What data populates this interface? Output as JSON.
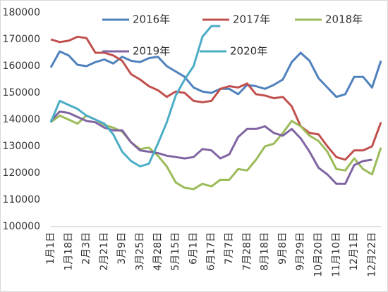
{
  "chart_data": {
    "type": "line",
    "categories": [
      "1月1日",
      null,
      "1月18日",
      null,
      "2月3日",
      null,
      "2月21日",
      null,
      "3月9日",
      null,
      "3月25日",
      null,
      "4月28日",
      null,
      "5月15日",
      null,
      "6月1日",
      null,
      "6月17日",
      null,
      "7月7日",
      null,
      "7月28日",
      null,
      "8月18日",
      null,
      "9月8日",
      null,
      "9月29日",
      null,
      "10月20日",
      null,
      "11月10日",
      null,
      "12月1日",
      null,
      "12月22日",
      null
    ],
    "ylim": [
      100000,
      180000
    ],
    "yticks": [
      100000,
      110000,
      120000,
      130000,
      140000,
      150000,
      160000,
      170000,
      180000
    ],
    "grid": false,
    "series": [
      {
        "name": "2016年",
        "color": "#4f81bd",
        "values": [
          159500,
          165500,
          164000,
          160500,
          160000,
          161500,
          162500,
          161000,
          163500,
          162000,
          161500,
          163000,
          163500,
          160000,
          158000,
          156000,
          152000,
          150500,
          150000,
          151500,
          151500,
          149500,
          153000,
          152500,
          151500,
          153000,
          155000,
          161500,
          165000,
          162000,
          155500,
          152000,
          148500,
          149500,
          156000,
          156000,
          152000,
          162000
        ]
      },
      {
        "name": "2017年",
        "color": "#c0504d",
        "values": [
          170000,
          169000,
          169500,
          171000,
          170500,
          165000,
          165000,
          164000,
          162000,
          157000,
          155000,
          152500,
          151000,
          148500,
          150500,
          150000,
          147000,
          146500,
          147000,
          151500,
          152500,
          152000,
          153500,
          149500,
          149000,
          148000,
          148500,
          145000,
          137500,
          135000,
          134500,
          130000,
          126000,
          125000,
          128500,
          128500,
          130000,
          139000
        ]
      },
      {
        "name": "2018年",
        "color": "#9bbb59",
        "values": [
          139000,
          141500,
          140000,
          138500,
          141500,
          140000,
          138000,
          137000,
          135500,
          131500,
          129000,
          129500,
          126500,
          122500,
          116500,
          114500,
          114000,
          116000,
          115000,
          117500,
          117500,
          121500,
          121000,
          125000,
          130000,
          131000,
          135000,
          139500,
          137500,
          134000,
          132000,
          128000,
          121500,
          121000,
          125500,
          121500,
          119500,
          129500
        ]
      },
      {
        "name": "2019年",
        "color": "#8064a2",
        "values": [
          139500,
          143000,
          142500,
          141000,
          139500,
          139000,
          137000,
          136000,
          136000,
          131500,
          128500,
          128000,
          127500,
          126500,
          126000,
          125500,
          126000,
          129000,
          128500,
          125500,
          127000,
          133500,
          136500,
          136500,
          137500,
          135000,
          134000,
          136500,
          133000,
          128000,
          122000,
          119500,
          116000,
          116000,
          123000,
          124500,
          125000,
          null
        ]
      },
      {
        "name": "2020年",
        "color": "#4bacc6",
        "values": [
          139000,
          147000,
          145500,
          144000,
          141500,
          140000,
          138500,
          134500,
          128000,
          124500,
          122500,
          123500,
          131000,
          139000,
          149000,
          155000,
          160000,
          171000,
          175000,
          175000,
          null,
          null,
          null,
          null,
          null,
          null,
          null,
          null,
          null,
          null,
          null,
          null,
          null,
          null,
          null,
          null,
          null,
          null
        ]
      }
    ]
  }
}
